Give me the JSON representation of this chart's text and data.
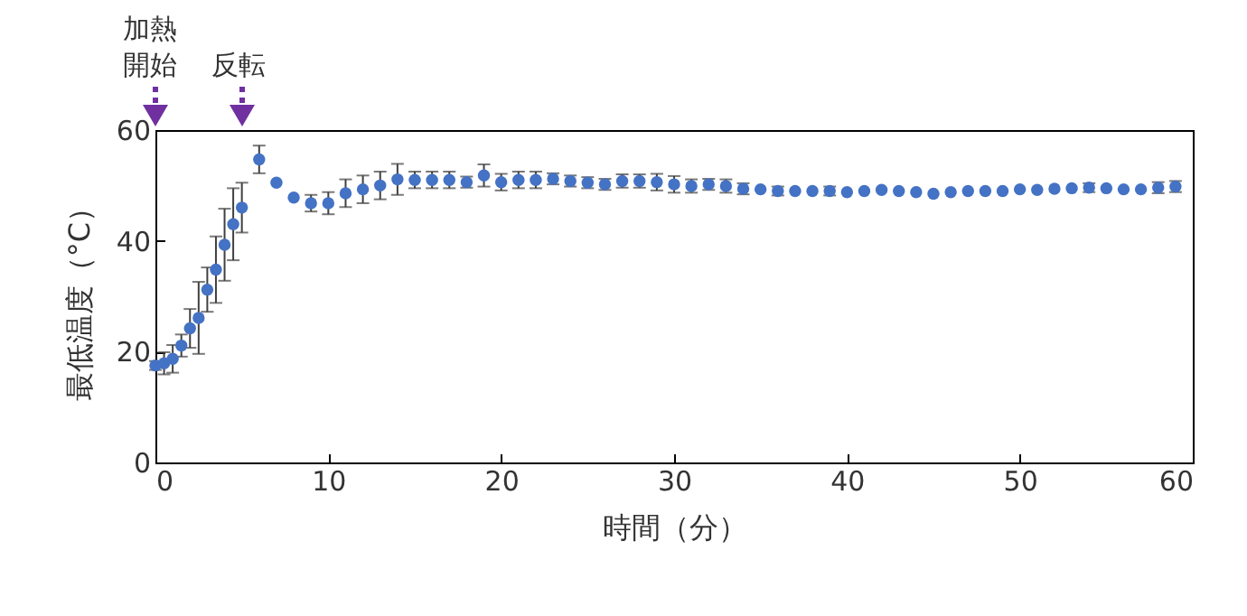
{
  "chart_data": {
    "type": "scatter",
    "xlabel": "時間（分）",
    "ylabel": "最低温度（°C）",
    "x": [
      0,
      0.5,
      1,
      1.5,
      2,
      2.5,
      3,
      3.5,
      4,
      4.5,
      5,
      6,
      7,
      8,
      9,
      10,
      11,
      12,
      13,
      14,
      15,
      16,
      17,
      18,
      19,
      20,
      21,
      22,
      23,
      24,
      25,
      26,
      27,
      28,
      29,
      30,
      31,
      32,
      33,
      34,
      35,
      36,
      37,
      38,
      39,
      40,
      41,
      42,
      43,
      44,
      45,
      46,
      47,
      48,
      49,
      50,
      51,
      52,
      53,
      54,
      55,
      56,
      57,
      58,
      59
    ],
    "series": [
      {
        "color": "#4472c4",
        "values": [
          17.5,
          17.9,
          18.7,
          21.1,
          24.2,
          26.1,
          31.2,
          34.8,
          39.3,
          43.0,
          46.0,
          54.7,
          50.5,
          47.8,
          46.8,
          46.8,
          48.6,
          49.3,
          50.0,
          51.1,
          51.0,
          51.0,
          51.0,
          50.6,
          51.8,
          50.6,
          51.0,
          51.0,
          51.2,
          50.8,
          50.5,
          50.2,
          50.8,
          50.8,
          50.6,
          50.2,
          49.9,
          50.2,
          49.9,
          49.4,
          49.3,
          49.0,
          49.0,
          49.0,
          49.0,
          48.8,
          49.0,
          49.2,
          49.0,
          48.8,
          48.5,
          48.8,
          49.0,
          49.0,
          49.0,
          49.3,
          49.2,
          49.4,
          49.5,
          49.6,
          49.5,
          49.3,
          49.3,
          49.6,
          49.8
        ],
        "errors": [
          0.8,
          2,
          2.5,
          2,
          3.5,
          6.5,
          4,
          6,
          6.5,
          6.5,
          4.5,
          2.5,
          null,
          null,
          1.5,
          2,
          2.5,
          2.5,
          2.5,
          2.8,
          1.5,
          1.5,
          1.5,
          1,
          2,
          1.5,
          1.5,
          1.5,
          1,
          1,
          1,
          1,
          1.2,
          1.2,
          1.5,
          1.5,
          1.2,
          1,
          1.2,
          1,
          null,
          0.8,
          null,
          null,
          0.8,
          null,
          null,
          null,
          null,
          null,
          null,
          null,
          null,
          null,
          null,
          null,
          null,
          null,
          null,
          0.8,
          null,
          null,
          null,
          1,
          1
        ]
      }
    ],
    "xlim": [
      0,
      60
    ],
    "xticks": [
      0,
      10,
      20,
      30,
      40,
      50,
      60
    ],
    "ylim": [
      0,
      60
    ],
    "yticks": [
      0,
      20,
      40,
      60
    ],
    "marker": "circle",
    "grid": false,
    "annotations": [
      "加熱開始",
      "反転"
    ]
  }
}
